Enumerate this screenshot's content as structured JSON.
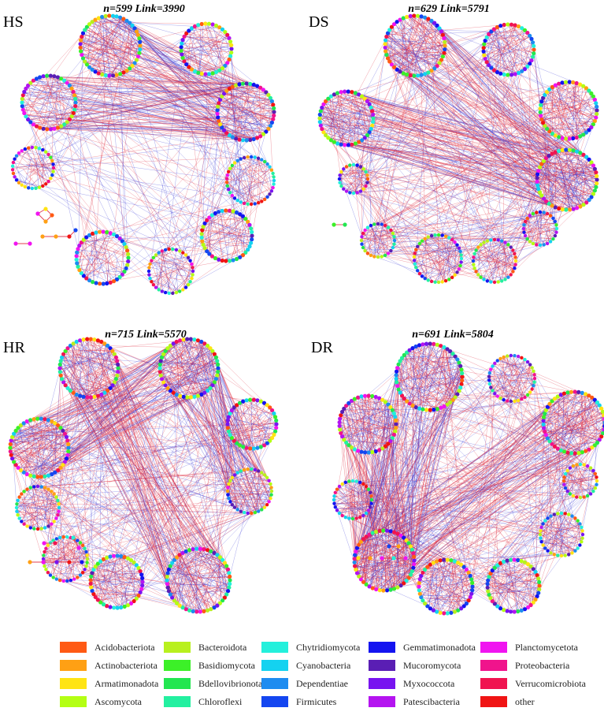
{
  "panels": [
    {
      "id": "HS",
      "label": "HS",
      "title": "n=599  Link=3990"
    },
    {
      "id": "DS",
      "label": "DS",
      "title": "n=629  Link=5791"
    },
    {
      "id": "HR",
      "label": "HR",
      "title": "n=715  Link=5570"
    },
    {
      "id": "DR",
      "label": "DR",
      "title": "n=691  Link=5804"
    }
  ],
  "edge_colors": {
    "positive": "#e0283c",
    "negative": "#3b3bd6"
  },
  "legend": [
    {
      "label": "Acidobacteriota",
      "color": "#ff5a14"
    },
    {
      "label": "Actinobacteriota",
      "color": "#ffa014"
    },
    {
      "label": "Armatimonadota",
      "color": "#ffe414"
    },
    {
      "label": "Ascomycota",
      "color": "#b4ff14"
    },
    {
      "label": "Bacteroidota",
      "color": "#b8f01e"
    },
    {
      "label": "Basidiomycota",
      "color": "#3cf028"
    },
    {
      "label": "Bdellovibrionota",
      "color": "#23e650"
    },
    {
      "label": "Chloroflexi",
      "color": "#23f0a0"
    },
    {
      "label": "Chytridiomycota",
      "color": "#23f0dc"
    },
    {
      "label": "Cyanobacteria",
      "color": "#14d2f0"
    },
    {
      "label": "Dependentiae",
      "color": "#1e8cf0"
    },
    {
      "label": "Firmicutes",
      "color": "#1446f0"
    },
    {
      "label": "Gemmatimonadota",
      "color": "#1414f0"
    },
    {
      "label": "Mucoromycota",
      "color": "#5a1eb4"
    },
    {
      "label": "Myxococcota",
      "color": "#7814f0"
    },
    {
      "label": "Patescibacteria",
      "color": "#b414f0"
    },
    {
      "label": "Planctomycetota",
      "color": "#f014f0"
    },
    {
      "label": "Proteobacteria",
      "color": "#f0148c"
    },
    {
      "label": "Verrucomicrobiota",
      "color": "#f01450"
    },
    {
      "label": "other",
      "color": "#f01414"
    }
  ]
}
